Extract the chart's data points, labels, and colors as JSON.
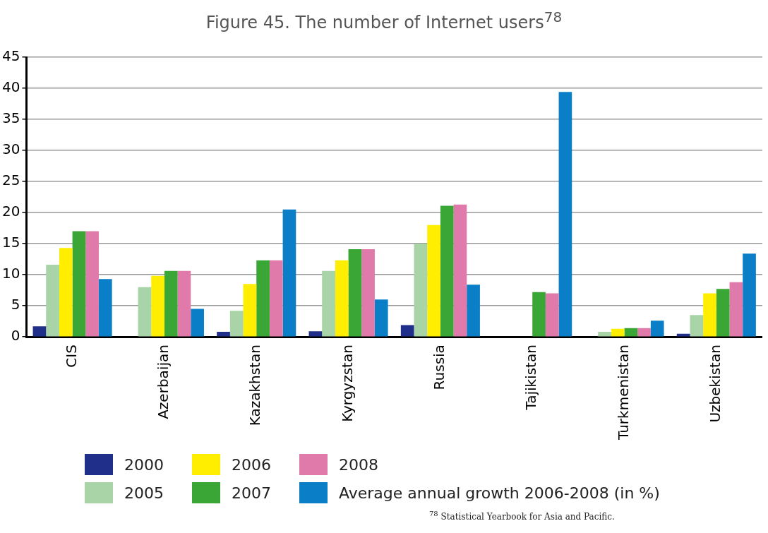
{
  "chart_data": {
    "type": "bar",
    "title": "Figure 45. The number of Internet users$^{78}$",
    "categories": [
      "CIS",
      "Azerbaijan",
      "Kazakhstan",
      "Kyrgyzstan",
      "Russia",
      "Tajikistan",
      "Turkmenistan",
      "Uzbekistan"
    ],
    "series": [
      {
        "name": "2000",
        "color": "#1f2f8a",
        "values": [
          1.7,
          null,
          0.8,
          0.9,
          1.9,
          null,
          null,
          0.5
        ]
      },
      {
        "name": "2005",
        "color": "#a8d4a8",
        "values": [
          11.6,
          8.0,
          4.2,
          10.6,
          15.0,
          null,
          0.8,
          3.5
        ]
      },
      {
        "name": "2006",
        "color": "#ffee00",
        "values": [
          14.3,
          9.8,
          8.5,
          12.3,
          18.0,
          null,
          1.3,
          7.0
        ]
      },
      {
        "name": "2007",
        "color": "#3aa635",
        "values": [
          17.0,
          10.6,
          12.3,
          14.1,
          21.1,
          7.2,
          1.4,
          7.7
        ]
      },
      {
        "name": "2008",
        "color": "#e07aaa",
        "values": [
          17.0,
          10.6,
          12.3,
          14.1,
          21.3,
          7.0,
          1.4,
          8.8
        ]
      },
      {
        "name": "Average annual growth 2006-2008 (in %)",
        "color": "#0a7fc8",
        "values": [
          9.3,
          4.5,
          20.5,
          6.0,
          8.4,
          39.4,
          2.6,
          13.4
        ]
      }
    ],
    "ylim": [
      0,
      45
    ],
    "yticks": [
      0,
      5,
      10,
      15,
      20,
      25,
      30,
      35,
      40,
      45
    ],
    "grid": "y",
    "legend": "bottom",
    "annotations": [
      "$^{78}$ Statistical Yearbook for Asia and Pacific."
    ]
  }
}
